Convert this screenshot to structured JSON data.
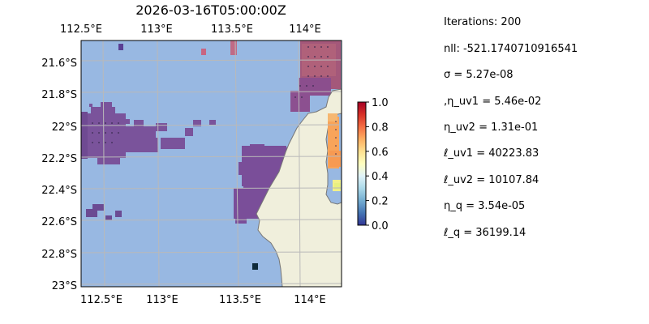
{
  "title": "2026-03-16T05:00:00Z",
  "map": {
    "lon_ticks": [
      "112.5°E",
      "113°E",
      "113.5°E",
      "114°E"
    ],
    "lat_ticks": [
      "21.6°S",
      "21.8°S",
      "22°S",
      "22.2°S",
      "22.4°S",
      "22.6°S",
      "22.8°S",
      "23°S"
    ],
    "lon_range": [
      112.5,
      114.2
    ],
    "lat_range": [
      -23.0,
      -21.45
    ],
    "grid": true,
    "colors": {
      "ocean": "#98b8e2",
      "land": "#f0efdc",
      "coastline": "#777777",
      "gridline": "#b9b9b9"
    }
  },
  "colorbar": {
    "ticks": [
      "0.0",
      "0.2",
      "0.4",
      "0.6",
      "0.8",
      "1.0"
    ],
    "range": [
      0,
      1
    ],
    "colormap": "RdYlBu_r"
  },
  "params": [
    "Iterations: 200",
    "nll: -521.1740710916541",
    "σ = 5.27e-08",
    ",η_uv1 = 5.46e-02",
    "η_uv2 = 1.31e-01",
    "ℓ_uv1 = 40223.83",
    "ℓ_uv2 = 10107.84",
    "η_q = 3.54e-05",
    "ℓ_q = 36199.14"
  ]
}
